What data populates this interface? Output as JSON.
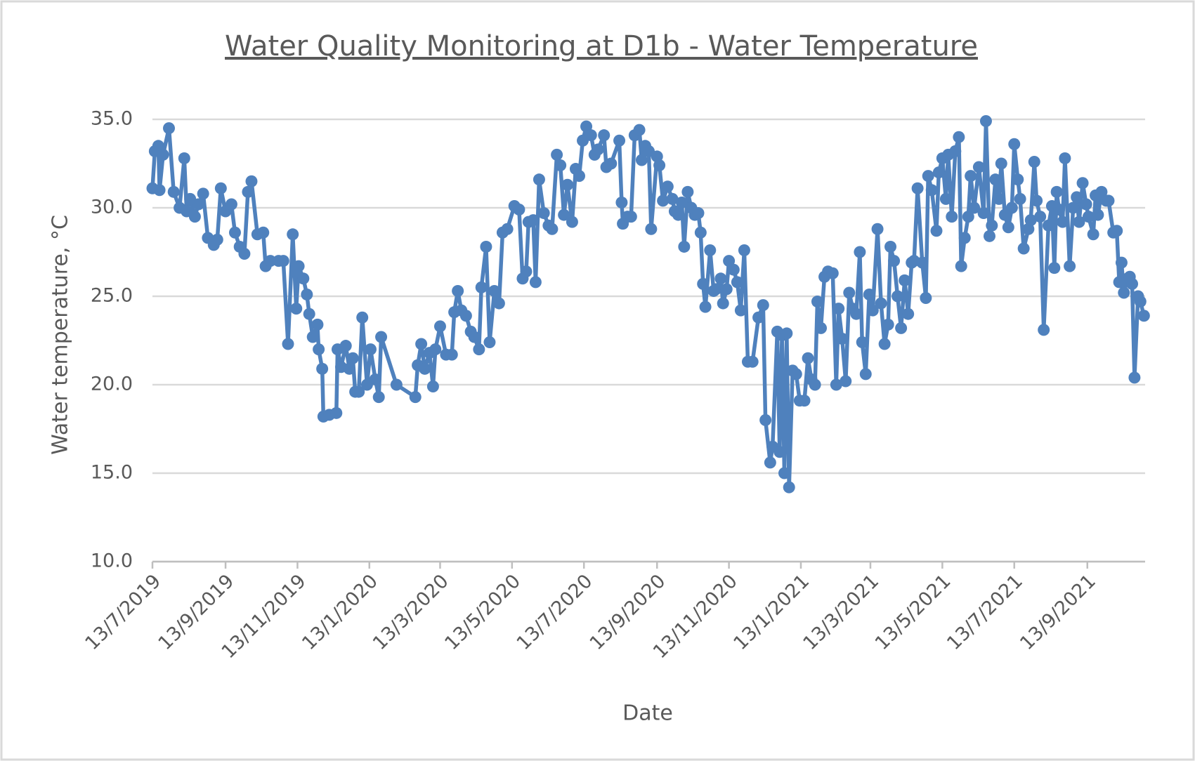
{
  "chart_data": {
    "type": "line",
    "title": "Water Quality Monitoring at D1b - Water Temperature",
    "x_label": "Date",
    "y_label": "Water temperature, °C",
    "xlim": [
      "2019-07-13",
      "2021-11-01"
    ],
    "xticks": [
      {
        "value": "2019-07-13",
        "label": "13/7/2019"
      },
      {
        "value": "2019-09-13",
        "label": "13/9/2019"
      },
      {
        "value": "2019-11-13",
        "label": "13/11/2019"
      },
      {
        "value": "2020-01-13",
        "label": "13/1/2020"
      },
      {
        "value": "2020-03-13",
        "label": "13/3/2020"
      },
      {
        "value": "2020-05-13",
        "label": "13/5/2020"
      },
      {
        "value": "2020-07-13",
        "label": "13/7/2020"
      },
      {
        "value": "2020-09-13",
        "label": "13/9/2020"
      },
      {
        "value": "2020-11-13",
        "label": "13/11/2020"
      },
      {
        "value": "2021-01-13",
        "label": "13/1/2021"
      },
      {
        "value": "2021-03-13",
        "label": "13/3/2021"
      },
      {
        "value": "2021-05-13",
        "label": "13/5/2021"
      },
      {
        "value": "2021-07-13",
        "label": "13/7/2021"
      },
      {
        "value": "2021-09-13",
        "label": "13/9/2021"
      }
    ],
    "ylim": [
      10,
      35
    ],
    "yticks": [
      {
        "value": 10,
        "label": "10.0"
      },
      {
        "value": 15,
        "label": "15.0"
      },
      {
        "value": 20,
        "label": "20.0"
      },
      {
        "value": 25,
        "label": "25.0"
      },
      {
        "value": 30,
        "label": "30.0"
      },
      {
        "value": 35,
        "label": "35.0"
      }
    ],
    "grid": true,
    "x": [
      "2019-07-13",
      "2019-07-15",
      "2019-07-18",
      "2019-07-19",
      "2019-07-22",
      "2019-07-27",
      "2019-07-31",
      "2019-08-05",
      "2019-08-09",
      "2019-08-11",
      "2019-08-14",
      "2019-08-18",
      "2019-08-21",
      "2019-08-25",
      "2019-08-29",
      "2019-09-03",
      "2019-09-06",
      "2019-09-09",
      "2019-09-13",
      "2019-09-18",
      "2019-09-21",
      "2019-09-25",
      "2019-09-29",
      "2019-10-02",
      "2019-10-05",
      "2019-10-10",
      "2019-10-15",
      "2019-10-17",
      "2019-10-21",
      "2019-10-28",
      "2019-11-01",
      "2019-11-05",
      "2019-11-09",
      "2019-11-12",
      "2019-11-14",
      "2019-11-18",
      "2019-11-21",
      "2019-11-23",
      "2019-11-26",
      "2019-11-30",
      "2019-12-01",
      "2019-12-04",
      "2019-12-05",
      "2019-12-10",
      "2019-12-16",
      "2019-12-17",
      "2019-12-20",
      "2019-12-24",
      "2019-12-27",
      "2019-12-30",
      "2020-01-01",
      "2020-01-04",
      "2020-01-07",
      "2020-01-11",
      "2020-01-14",
      "2020-01-18",
      "2020-01-21",
      "2020-01-23",
      "2020-02-05",
      "2020-02-21",
      "2020-02-23",
      "2020-02-26",
      "2020-02-29",
      "2020-03-04",
      "2020-03-07",
      "2020-03-09",
      "2020-03-13",
      "2020-03-18",
      "2020-03-23",
      "2020-03-25",
      "2020-03-28",
      "2020-03-31",
      "2020-04-04",
      "2020-04-08",
      "2020-04-11",
      "2020-04-15",
      "2020-04-17",
      "2020-04-21",
      "2020-04-24",
      "2020-04-28",
      "2020-05-02",
      "2020-05-05",
      "2020-05-09",
      "2020-05-15",
      "2020-05-19",
      "2020-05-22",
      "2020-05-25",
      "2020-05-27",
      "2020-05-31",
      "2020-06-02",
      "2020-06-05",
      "2020-06-09",
      "2020-06-13",
      "2020-06-16",
      "2020-06-20",
      "2020-06-23",
      "2020-06-26",
      "2020-06-29",
      "2020-07-03",
      "2020-07-06",
      "2020-07-09",
      "2020-07-12",
      "2020-07-15",
      "2020-07-19",
      "2020-07-22",
      "2020-07-25",
      "2020-07-30",
      "2020-08-01",
      "2020-08-05",
      "2020-08-12",
      "2020-08-14",
      "2020-08-15",
      "2020-08-19",
      "2020-08-22",
      "2020-08-25",
      "2020-08-29",
      "2020-08-31",
      "2020-09-03",
      "2020-09-06",
      "2020-09-08",
      "2020-09-13",
      "2020-09-15",
      "2020-09-18",
      "2020-09-22",
      "2020-09-26",
      "2020-09-28",
      "2020-10-01",
      "2020-10-04",
      "2020-10-06",
      "2020-10-09",
      "2020-10-12",
      "2020-10-15",
      "2020-10-18",
      "2020-10-20",
      "2020-10-22",
      "2020-10-24",
      "2020-10-28",
      "2020-10-31",
      "2020-11-02",
      "2020-11-06",
      "2020-11-08",
      "2020-11-11",
      "2020-11-13",
      "2020-11-17",
      "2020-11-20",
      "2020-11-23",
      "2020-11-26",
      "2020-11-29",
      "2020-12-03",
      "2020-12-08",
      "2020-12-12",
      "2020-12-14",
      "2020-12-18",
      "2020-12-20",
      "2020-12-24",
      "2020-12-26",
      "2020-12-28",
      "2020-12-30",
      "2021-01-01",
      "2021-01-03",
      "2021-01-06",
      "2021-01-09",
      "2021-01-12",
      "2021-01-16",
      "2021-01-19",
      "2021-01-22",
      "2021-01-25",
      "2021-01-27",
      "2021-01-30",
      "2021-02-02",
      "2021-02-05",
      "2021-02-09",
      "2021-02-12",
      "2021-02-14",
      "2021-02-17",
      "2021-02-20",
      "2021-02-23",
      "2021-02-26",
      "2021-03-01",
      "2021-03-04",
      "2021-03-06",
      "2021-03-09",
      "2021-03-12",
      "2021-03-15",
      "2021-03-19",
      "2021-03-22",
      "2021-03-25",
      "2021-03-28",
      "2021-03-30",
      "2021-04-02",
      "2021-04-05",
      "2021-04-08",
      "2021-04-11",
      "2021-04-14",
      "2021-04-17",
      "2021-04-19",
      "2021-04-22",
      "2021-04-26",
      "2021-04-29",
      "2021-05-01",
      "2021-05-04",
      "2021-05-08",
      "2021-05-10",
      "2021-05-13",
      "2021-05-16",
      "2021-05-18",
      "2021-05-21",
      "2021-05-24",
      "2021-05-27",
      "2021-05-29",
      "2021-06-01",
      "2021-06-04",
      "2021-06-06",
      "2021-06-09",
      "2021-06-13",
      "2021-06-17",
      "2021-06-19",
      "2021-06-22",
      "2021-06-24",
      "2021-06-27",
      "2021-06-30",
      "2021-07-02",
      "2021-07-05",
      "2021-07-08",
      "2021-07-11",
      "2021-07-13",
      "2021-07-16",
      "2021-07-18",
      "2021-07-21",
      "2021-07-25",
      "2021-07-27",
      "2021-07-30",
      "2021-08-01",
      "2021-08-04",
      "2021-08-07",
      "2021-08-11",
      "2021-08-14",
      "2021-08-16",
      "2021-08-18",
      "2021-08-20",
      "2021-08-23",
      "2021-08-25",
      "2021-08-29",
      "2021-09-01",
      "2021-09-04",
      "2021-09-06",
      "2021-09-09",
      "2021-09-12",
      "2021-09-14",
      "2021-09-18",
      "2021-09-20",
      "2021-09-22",
      "2021-09-25",
      "2021-09-29",
      "2021-10-01",
      "2021-10-05",
      "2021-10-08",
      "2021-10-10",
      "2021-10-12",
      "2021-10-14",
      "2021-10-17",
      "2021-10-19",
      "2021-10-21",
      "2021-10-23",
      "2021-10-26",
      "2021-10-28",
      "2021-10-31"
    ],
    "series": [
      {
        "color": "#4f81bd",
        "values": [
          31.1,
          33.2,
          33.5,
          31.0,
          33.0,
          34.5,
          30.9,
          30.0,
          32.8,
          29.8,
          30.5,
          29.5,
          30.2,
          30.8,
          28.3,
          27.9,
          28.2,
          31.1,
          29.8,
          30.2,
          28.6,
          27.8,
          27.4,
          30.9,
          31.5,
          28.5,
          28.6,
          26.7,
          27.0,
          27.0,
          27.0,
          22.3,
          28.5,
          24.3,
          26.7,
          26.0,
          25.1,
          24.0,
          22.7,
          23.4,
          22.0,
          20.9,
          18.2,
          18.3,
          18.4,
          22.0,
          21.0,
          22.2,
          20.9,
          21.5,
          19.6,
          19.6,
          23.8,
          20.0,
          22.0,
          20.3,
          19.3,
          22.7,
          20.0,
          19.3,
          21.1,
          22.3,
          20.9,
          21.8,
          19.9,
          22.0,
          23.3,
          21.7,
          21.7,
          24.1,
          25.3,
          24.2,
          23.9,
          23.0,
          22.7,
          22.0,
          25.5,
          27.8,
          22.4,
          25.3,
          24.6,
          28.6,
          28.8,
          30.1,
          29.9,
          26.0,
          26.4,
          29.2,
          29.3,
          25.8,
          31.6,
          29.7,
          29.0,
          28.8,
          33.0,
          32.4,
          29.6,
          31.3,
          29.2,
          32.2,
          31.8,
          33.8,
          34.6,
          34.1,
          33.0,
          33.3,
          34.1,
          32.3,
          32.5,
          33.8,
          30.3,
          29.1,
          29.5,
          29.5,
          34.1,
          34.4,
          32.7,
          33.5,
          33.2,
          28.8,
          32.9,
          32.4,
          30.4,
          31.2,
          30.5,
          29.8,
          29.6,
          30.3,
          27.8,
          30.9,
          30.0,
          29.6,
          29.7,
          28.6,
          25.7,
          24.4,
          27.6,
          25.3,
          25.4,
          26.0,
          24.6,
          25.4,
          27.0,
          26.5,
          25.8,
          24.2,
          27.6,
          21.3,
          21.3,
          23.8,
          24.5,
          18.0,
          15.6,
          16.5,
          23.0,
          16.2,
          22.8,
          15.0,
          22.9,
          14.2,
          20.8,
          20.6,
          19.1,
          19.1,
          21.5,
          20.3,
          20.0,
          24.7,
          23.2,
          26.1,
          26.4,
          26.3,
          20.0,
          24.3,
          22.6,
          20.2,
          25.2,
          24.3,
          24.0,
          27.5,
          22.4,
          20.6,
          25.1,
          24.2,
          28.8,
          24.6,
          22.3,
          23.4,
          27.8,
          27.0,
          25.0,
          23.2,
          25.9,
          24.0,
          26.9,
          27.0,
          31.1,
          26.9,
          24.9,
          31.8,
          31.0,
          28.7,
          32.0,
          32.8,
          30.5,
          33.0,
          29.5,
          33.2,
          34.0,
          26.7,
          28.3,
          29.5,
          31.8,
          30.0,
          32.3,
          29.7,
          34.9,
          28.4,
          29.0,
          31.6,
          30.5,
          32.5,
          29.6,
          28.9,
          30.0,
          33.6,
          31.6,
          30.5,
          27.7,
          28.8,
          29.3,
          32.6,
          30.4,
          29.5,
          23.1,
          29.0,
          30.1,
          26.6,
          30.9,
          29.9,
          29.2,
          32.8,
          26.7,
          30.0,
          30.6,
          29.2,
          31.4,
          30.2,
          29.5,
          28.5,
          30.7,
          29.6,
          30.9,
          30.4,
          30.4,
          28.6,
          28.7,
          25.8,
          26.9,
          25.2,
          26.0,
          26.1,
          25.7,
          20.4,
          25.0,
          24.7,
          23.9
        ]
      }
    ]
  }
}
